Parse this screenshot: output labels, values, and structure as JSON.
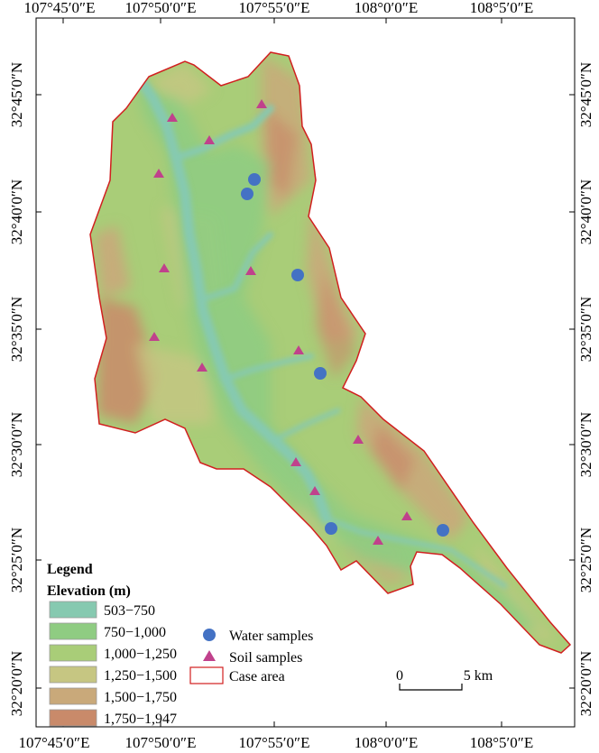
{
  "map": {
    "top_labels": [
      "107°45′0″E",
      "107°50′0″E",
      "107°55′0″E",
      "108°0′0″E",
      "108°5′0″E"
    ],
    "bottom_labels": [
      "107°45′0″E",
      "107°50′0″E",
      "107°55′0″E",
      "108°0′0″E",
      "108°5′0″E"
    ],
    "left_labels": [
      "32°45′0″N",
      "32°40′0″N",
      "32°35′0″N",
      "32°30′0″N",
      "32°25′0″N",
      "32°20′0″N"
    ],
    "right_labels": [
      "32°45′0″N",
      "32°40′0″N",
      "32°35′0″N",
      "32°30′0″N",
      "32°25′0″N",
      "32°20′0″N"
    ]
  },
  "legend": {
    "title": "Legend",
    "subtitle": "Elevation (m)",
    "classes": [
      {
        "label": "503−750",
        "color": "#86c9b0"
      },
      {
        "label": "750−1,000",
        "color": "#8fcc82"
      },
      {
        "label": "1,000−1,250",
        "color": "#a9cd78"
      },
      {
        "label": "1,250−1,500",
        "color": "#c6c682"
      },
      {
        "label": "1,500−1,750",
        "color": "#c9a97a"
      },
      {
        "label": "1,750−1,947",
        "color": "#c98a6a"
      }
    ],
    "symbols": {
      "water": {
        "label": "Water samples",
        "color": "#4472c4"
      },
      "soil": {
        "label": "Soil samples",
        "color": "#c0418c"
      },
      "case_area": {
        "label": "Case area",
        "color": "#d11f1f"
      }
    }
  },
  "scale_bar": {
    "start_label": "0",
    "end_label": "5 km"
  }
}
